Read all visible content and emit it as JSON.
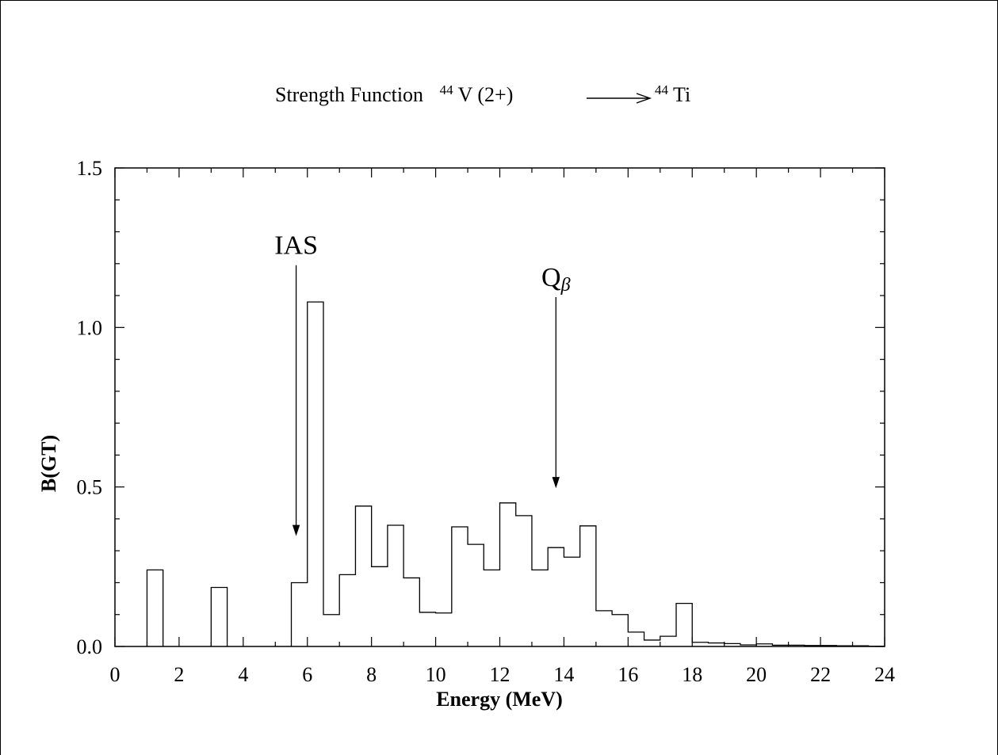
{
  "chart_data": {
    "type": "bar",
    "title": {
      "prefix": "Strength Function",
      "parent_mass": "44",
      "parent": "V (2+)",
      "daughter_mass": "44",
      "daughter": "Ti"
    },
    "xlabel": "Energy (MeV)",
    "ylabel": "B(GT)",
    "xlim": [
      0,
      24
    ],
    "ylim": [
      0,
      1.5
    ],
    "x_ticks": [
      "0",
      "2",
      "4",
      "6",
      "8",
      "10",
      "12",
      "14",
      "16",
      "18",
      "20",
      "22",
      "24"
    ],
    "y_ticks": [
      "0.0",
      "0.5",
      "1.0",
      "1.5"
    ],
    "grid": false,
    "legend": "none",
    "histogram": {
      "bin_width": 0.5,
      "bins": [
        {
          "x0": 1.0,
          "value": 0.24
        },
        {
          "x0": 3.0,
          "value": 0.185
        },
        {
          "x0": 5.5,
          "value": 0.2
        },
        {
          "x0": 6.0,
          "value": 1.08
        },
        {
          "x0": 6.5,
          "value": 0.1
        },
        {
          "x0": 7.0,
          "value": 0.225
        },
        {
          "x0": 7.5,
          "value": 0.44
        },
        {
          "x0": 8.0,
          "value": 0.25
        },
        {
          "x0": 8.5,
          "value": 0.38
        },
        {
          "x0": 9.0,
          "value": 0.215
        },
        {
          "x0": 9.5,
          "value": 0.107
        },
        {
          "x0": 10.0,
          "value": 0.105
        },
        {
          "x0": 10.5,
          "value": 0.375
        },
        {
          "x0": 11.0,
          "value": 0.32
        },
        {
          "x0": 11.5,
          "value": 0.24
        },
        {
          "x0": 12.0,
          "value": 0.45
        },
        {
          "x0": 12.5,
          "value": 0.41
        },
        {
          "x0": 13.0,
          "value": 0.24
        },
        {
          "x0": 13.5,
          "value": 0.31
        },
        {
          "x0": 14.0,
          "value": 0.28
        },
        {
          "x0": 14.5,
          "value": 0.378
        },
        {
          "x0": 15.0,
          "value": 0.112
        },
        {
          "x0": 15.5,
          "value": 0.1
        },
        {
          "x0": 16.0,
          "value": 0.045
        },
        {
          "x0": 16.5,
          "value": 0.02
        },
        {
          "x0": 17.0,
          "value": 0.032
        },
        {
          "x0": 17.5,
          "value": 0.135
        },
        {
          "x0": 18.0,
          "value": 0.013
        },
        {
          "x0": 18.5,
          "value": 0.011
        },
        {
          "x0": 19.0,
          "value": 0.009
        },
        {
          "x0": 19.5,
          "value": 0.005
        },
        {
          "x0": 20.0,
          "value": 0.008
        },
        {
          "x0": 20.5,
          "value": 0.004
        },
        {
          "x0": 21.0,
          "value": 0.004
        },
        {
          "x0": 21.5,
          "value": 0.003
        },
        {
          "x0": 22.0,
          "value": 0.003
        },
        {
          "x0": 22.5,
          "value": 0.002
        },
        {
          "x0": 23.0,
          "value": 0.002
        },
        {
          "x0": 23.5,
          "value": 0.001
        }
      ]
    },
    "annotations": [
      {
        "label": "IAS",
        "x": 5.65,
        "arrow_to_y": 0.35,
        "label_y": 1.23,
        "subscript": ""
      },
      {
        "label": "Q",
        "subscript": "β",
        "x": 13.75,
        "arrow_to_y": 0.5,
        "label_y": 1.13
      }
    ]
  }
}
